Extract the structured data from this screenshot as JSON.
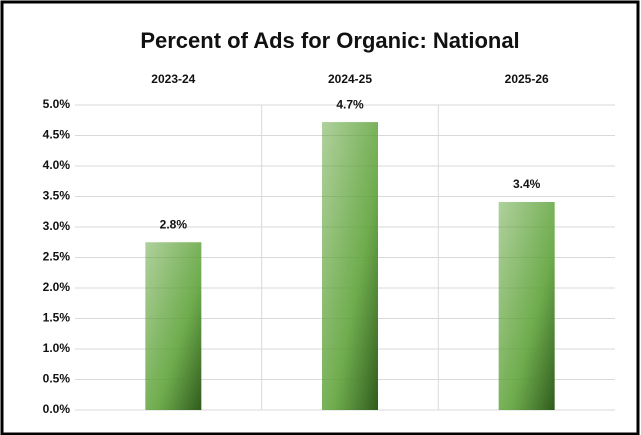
{
  "chart_data": {
    "type": "bar",
    "title": "Percent of Ads for Organic: National",
    "categories": [
      "2023-24",
      "2024-25",
      "2025-26"
    ],
    "values": [
      2.75,
      4.72,
      3.41
    ],
    "value_labels": [
      "2.8%",
      "4.7%",
      "3.4%"
    ],
    "color": "#5fa33a",
    "ylim": [
      0,
      5
    ],
    "yticks": [
      {
        "value": 0,
        "label": "0.0%"
      },
      {
        "value": 0.5,
        "label": "0.5%"
      },
      {
        "value": 1,
        "label": "1.0%"
      },
      {
        "value": 1.5,
        "label": "1.5%"
      },
      {
        "value": 2,
        "label": "2.0%"
      },
      {
        "value": 2.5,
        "label": "2.5%"
      },
      {
        "value": 3,
        "label": "3.0%"
      },
      {
        "value": 3.5,
        "label": "3.5%"
      },
      {
        "value": 4,
        "label": "4.0%"
      },
      {
        "value": 4.5,
        "label": "4.5%"
      },
      {
        "value": 5,
        "label": "5.0%"
      }
    ],
    "grid": true
  }
}
